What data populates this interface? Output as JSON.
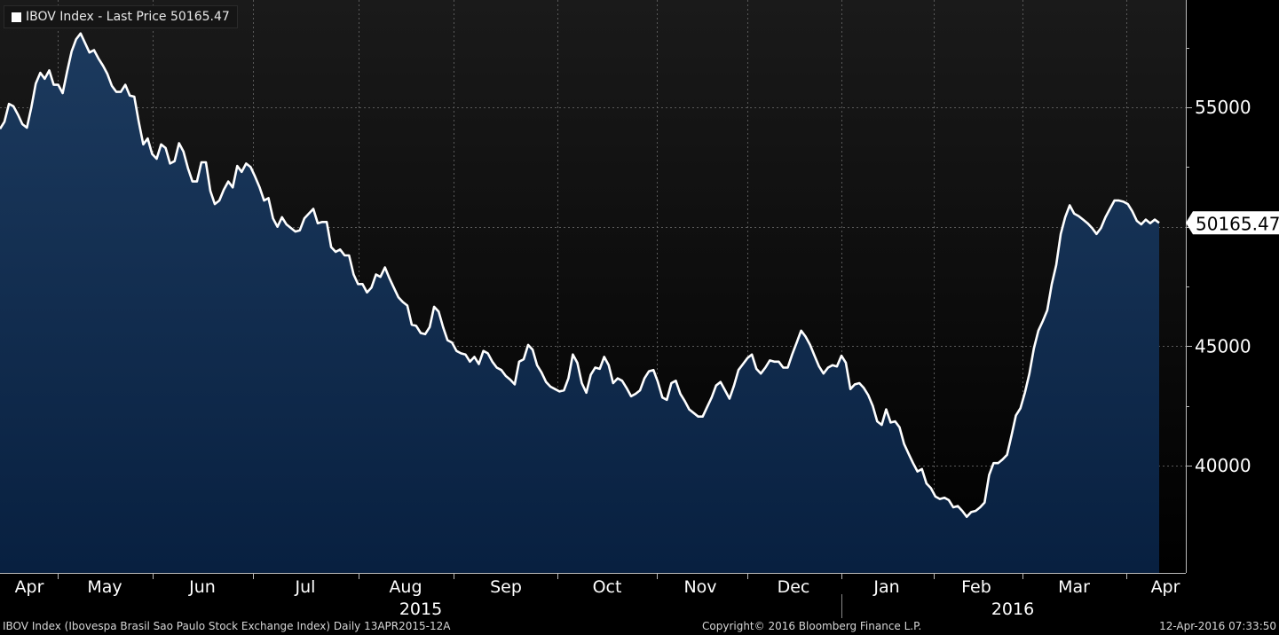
{
  "legend": {
    "label": "IBOV Index - Last Price 50165.47",
    "color": "#ffffff"
  },
  "footer": {
    "left": "IBOV Index (Ibovespa Brasil Sao Paulo Stock Exchange Index)  Daily 13APR2015-12A",
    "center": "Copyright© 2016 Bloomberg Finance L.P.",
    "right": "12-Apr-2016 07:33:50"
  },
  "colors": {
    "background": "#000000",
    "area_top": "#1c3a5e",
    "area_bottom": "#082040",
    "line": "#ffffff"
  },
  "chart_data": {
    "type": "area",
    "title": "",
    "xlabel": "",
    "ylabel": "",
    "series": [
      {
        "name": "IBOV Index",
        "values": [
          54100,
          54400,
          55150,
          55050,
          54700,
          54300,
          54150,
          55000,
          56000,
          56450,
          56200,
          56550,
          55950,
          55950,
          55600,
          56500,
          57350,
          57850,
          58100,
          57700,
          57300,
          57400,
          57050,
          56750,
          56400,
          55900,
          55650,
          55650,
          55950,
          55500,
          55450,
          54400,
          53450,
          53700,
          53050,
          52850,
          53450,
          53300,
          52650,
          52750,
          53500,
          53150,
          52450,
          51900,
          51900,
          52700,
          52700,
          51500,
          50950,
          51100,
          51550,
          51900,
          51650,
          52550,
          52300,
          52650,
          52500,
          52100,
          51650,
          51100,
          51200,
          50350,
          50000,
          50400,
          50100,
          49950,
          49800,
          49850,
          50350,
          50550,
          50750,
          50150,
          50200,
          50200,
          49150,
          48950,
          49050,
          48800,
          48800,
          48000,
          47600,
          47600,
          47250,
          47450,
          48000,
          47900,
          48300,
          47850,
          47450,
          47050,
          46850,
          46700,
          45900,
          45850,
          45550,
          45500,
          45800,
          46650,
          46450,
          45800,
          45250,
          45150,
          44800,
          44700,
          44650,
          44350,
          44550,
          44250,
          44800,
          44700,
          44350,
          44100,
          44000,
          43750,
          43600,
          43400,
          44350,
          44450,
          45050,
          44850,
          44200,
          43900,
          43500,
          43300,
          43200,
          43100,
          43150,
          43650,
          44650,
          44300,
          43450,
          43050,
          43800,
          44100,
          44050,
          44550,
          44200,
          43450,
          43650,
          43550,
          43250,
          42900,
          43000,
          43150,
          43650,
          43950,
          44000,
          43500,
          42850,
          42750,
          43450,
          43550,
          43000,
          42700,
          42350,
          42200,
          42050,
          42050,
          42450,
          42850,
          43350,
          43500,
          43150,
          42800,
          43350,
          44000,
          44250,
          44500,
          44650,
          44050,
          43850,
          44100,
          44400,
          44350,
          44350,
          44100,
          44100,
          44650,
          45150,
          45650,
          45400,
          45050,
          44600,
          44150,
          43850,
          44100,
          44200,
          44150,
          44600,
          44300,
          43200,
          43400,
          43450,
          43250,
          42950,
          42500,
          41850,
          41700,
          42350,
          41800,
          41850,
          41600,
          40900,
          40500,
          40100,
          39750,
          39850,
          39250,
          39050,
          38700,
          38600,
          38650,
          38550,
          38250,
          38300,
          38100,
          37850,
          38050,
          38100,
          38250,
          38450,
          39600,
          40100,
          40100,
          40250,
          40450,
          41250,
          42100,
          42400,
          43050,
          43850,
          44900,
          45650,
          46050,
          46500,
          47600,
          48400,
          49700,
          50400,
          50900,
          50550,
          50450,
          50300,
          50150,
          49950,
          49700,
          49950,
          50400,
          50750,
          51100,
          51100,
          51050,
          50950,
          50650,
          50250,
          50100,
          50300,
          50150,
          50300,
          50165.47
        ]
      }
    ],
    "ylim": [
      35500,
      59500
    ],
    "yticks": [
      40000,
      45000,
      55000
    ],
    "ytick_labels": [
      "40000",
      "45000",
      "55000"
    ],
    "last_value_label": "50165.47",
    "month_labels": [
      "Apr",
      "May",
      "Jun",
      "Jul",
      "Aug",
      "Sep",
      "Oct",
      "Nov",
      "Dec",
      "Jan",
      "Feb",
      "Mar",
      "Apr"
    ],
    "year_labels": [
      "2015",
      "2016"
    ],
    "grid": true
  }
}
